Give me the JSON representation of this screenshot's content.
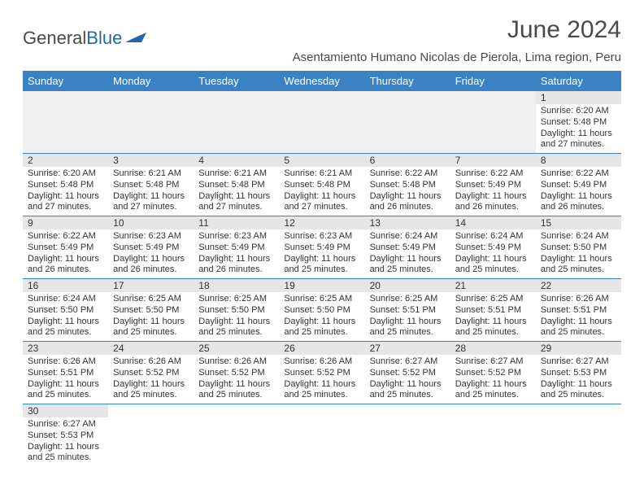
{
  "logo": {
    "text1": "General",
    "text2": "Blue"
  },
  "title": "June 2024",
  "location": "Asentamiento Humano Nicolas de Pierola, Lima region, Peru",
  "colors": {
    "header_bg": "#3a82c4",
    "header_fg": "#ffffff",
    "daynum_bg": "#e6e6e6",
    "row_border": "#3a82c4",
    "text": "#333333"
  },
  "weekdays": [
    "Sunday",
    "Monday",
    "Tuesday",
    "Wednesday",
    "Thursday",
    "Friday",
    "Saturday"
  ],
  "days": {
    "1": {
      "sunrise": "6:20 AM",
      "sunset": "5:48 PM",
      "daylight": "11 hours and 27 minutes."
    },
    "2": {
      "sunrise": "6:20 AM",
      "sunset": "5:48 PM",
      "daylight": "11 hours and 27 minutes."
    },
    "3": {
      "sunrise": "6:21 AM",
      "sunset": "5:48 PM",
      "daylight": "11 hours and 27 minutes."
    },
    "4": {
      "sunrise": "6:21 AM",
      "sunset": "5:48 PM",
      "daylight": "11 hours and 27 minutes."
    },
    "5": {
      "sunrise": "6:21 AM",
      "sunset": "5:48 PM",
      "daylight": "11 hours and 27 minutes."
    },
    "6": {
      "sunrise": "6:22 AM",
      "sunset": "5:48 PM",
      "daylight": "11 hours and 26 minutes."
    },
    "7": {
      "sunrise": "6:22 AM",
      "sunset": "5:49 PM",
      "daylight": "11 hours and 26 minutes."
    },
    "8": {
      "sunrise": "6:22 AM",
      "sunset": "5:49 PM",
      "daylight": "11 hours and 26 minutes."
    },
    "9": {
      "sunrise": "6:22 AM",
      "sunset": "5:49 PM",
      "daylight": "11 hours and 26 minutes."
    },
    "10": {
      "sunrise": "6:23 AM",
      "sunset": "5:49 PM",
      "daylight": "11 hours and 26 minutes."
    },
    "11": {
      "sunrise": "6:23 AM",
      "sunset": "5:49 PM",
      "daylight": "11 hours and 26 minutes."
    },
    "12": {
      "sunrise": "6:23 AM",
      "sunset": "5:49 PM",
      "daylight": "11 hours and 25 minutes."
    },
    "13": {
      "sunrise": "6:24 AM",
      "sunset": "5:49 PM",
      "daylight": "11 hours and 25 minutes."
    },
    "14": {
      "sunrise": "6:24 AM",
      "sunset": "5:49 PM",
      "daylight": "11 hours and 25 minutes."
    },
    "15": {
      "sunrise": "6:24 AM",
      "sunset": "5:50 PM",
      "daylight": "11 hours and 25 minutes."
    },
    "16": {
      "sunrise": "6:24 AM",
      "sunset": "5:50 PM",
      "daylight": "11 hours and 25 minutes."
    },
    "17": {
      "sunrise": "6:25 AM",
      "sunset": "5:50 PM",
      "daylight": "11 hours and 25 minutes."
    },
    "18": {
      "sunrise": "6:25 AM",
      "sunset": "5:50 PM",
      "daylight": "11 hours and 25 minutes."
    },
    "19": {
      "sunrise": "6:25 AM",
      "sunset": "5:50 PM",
      "daylight": "11 hours and 25 minutes."
    },
    "20": {
      "sunrise": "6:25 AM",
      "sunset": "5:51 PM",
      "daylight": "11 hours and 25 minutes."
    },
    "21": {
      "sunrise": "6:25 AM",
      "sunset": "5:51 PM",
      "daylight": "11 hours and 25 minutes."
    },
    "22": {
      "sunrise": "6:26 AM",
      "sunset": "5:51 PM",
      "daylight": "11 hours and 25 minutes."
    },
    "23": {
      "sunrise": "6:26 AM",
      "sunset": "5:51 PM",
      "daylight": "11 hours and 25 minutes."
    },
    "24": {
      "sunrise": "6:26 AM",
      "sunset": "5:52 PM",
      "daylight": "11 hours and 25 minutes."
    },
    "25": {
      "sunrise": "6:26 AM",
      "sunset": "5:52 PM",
      "daylight": "11 hours and 25 minutes."
    },
    "26": {
      "sunrise": "6:26 AM",
      "sunset": "5:52 PM",
      "daylight": "11 hours and 25 minutes."
    },
    "27": {
      "sunrise": "6:27 AM",
      "sunset": "5:52 PM",
      "daylight": "11 hours and 25 minutes."
    },
    "28": {
      "sunrise": "6:27 AM",
      "sunset": "5:52 PM",
      "daylight": "11 hours and 25 minutes."
    },
    "29": {
      "sunrise": "6:27 AM",
      "sunset": "5:53 PM",
      "daylight": "11 hours and 25 minutes."
    },
    "30": {
      "sunrise": "6:27 AM",
      "sunset": "5:53 PM",
      "daylight": "11 hours and 25 minutes."
    }
  },
  "layout": {
    "first_weekday_index": 6,
    "num_days": 30
  },
  "labels": {
    "sunrise": "Sunrise:",
    "sunset": "Sunset:",
    "daylight": "Daylight:"
  }
}
